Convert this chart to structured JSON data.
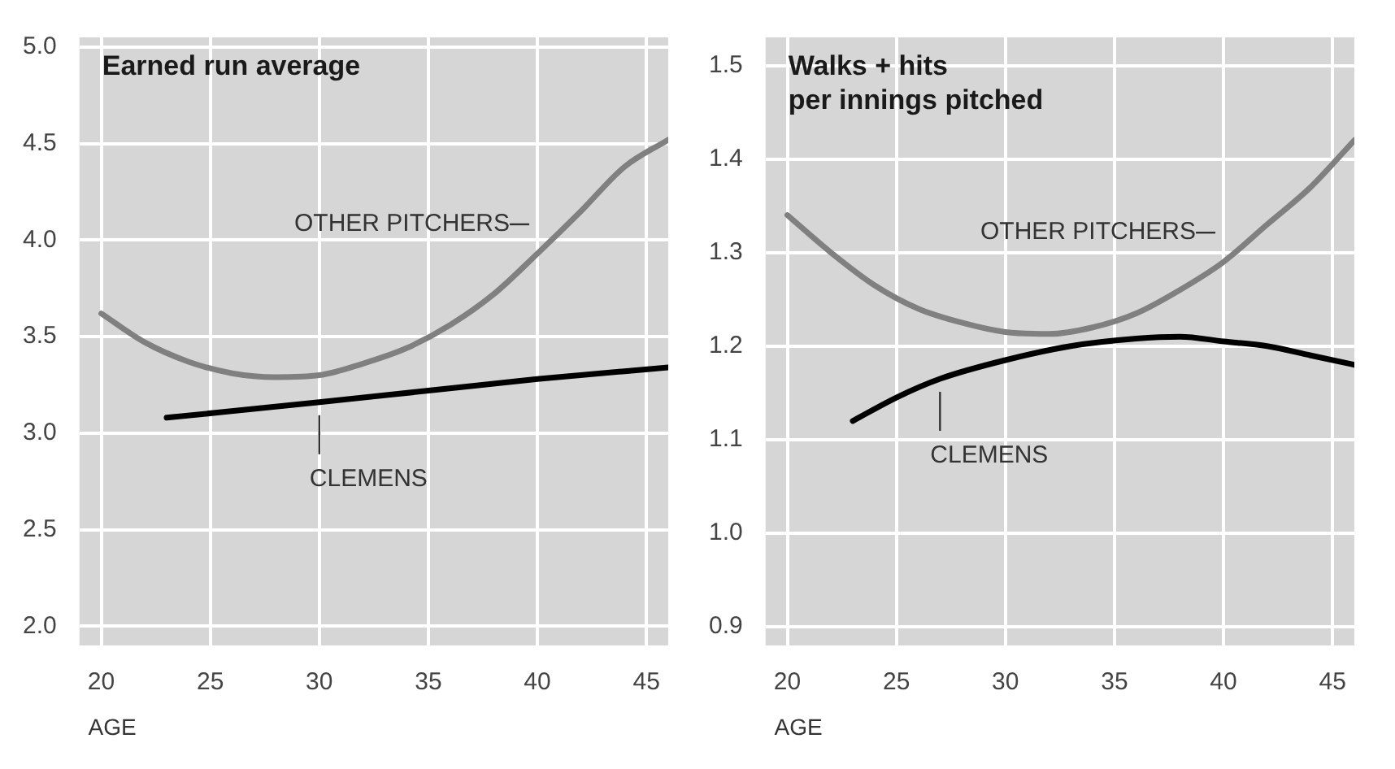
{
  "chart_data": [
    {
      "type": "line",
      "title": "Earned run average",
      "xlabel": "AGE",
      "xlim": [
        19,
        46
      ],
      "xticks": [
        20,
        25,
        30,
        35,
        40,
        45
      ],
      "ylim": [
        1.9,
        5.05
      ],
      "yticks": [
        {
          "value": 2,
          "label": "2.0"
        },
        {
          "value": 2.5,
          "label": "2.5"
        },
        {
          "value": 3,
          "label": "3.0"
        },
        {
          "value": 3.5,
          "label": "3.5"
        },
        {
          "value": 4,
          "label": "4.0"
        },
        {
          "value": 4.5,
          "label": "4.5"
        },
        {
          "value": 5,
          "label": "5.0"
        }
      ],
      "grid": true,
      "legend": false,
      "marker": "none",
      "series": [
        {
          "name": "OTHER PITCHERS",
          "color": "#808080",
          "x": [
            20,
            22,
            24,
            26,
            28,
            30,
            32,
            34,
            36,
            38,
            40,
            42,
            44,
            46
          ],
          "values": [
            3.62,
            3.47,
            3.37,
            3.31,
            3.29,
            3.3,
            3.36,
            3.44,
            3.56,
            3.72,
            3.93,
            4.15,
            4.38,
            4.52
          ]
        },
        {
          "name": "CLEMENS",
          "color": "#000000",
          "x": [
            23,
            30,
            35,
            40,
            46
          ],
          "values": [
            3.08,
            3.16,
            3.22,
            3.28,
            3.34
          ]
        }
      ]
    },
    {
      "type": "line",
      "title": "Walks + hits\nper innings pitched",
      "xlabel": "AGE",
      "xlim": [
        19,
        46
      ],
      "xticks": [
        20,
        25,
        30,
        35,
        40,
        45
      ],
      "ylim": [
        0.88,
        1.53
      ],
      "yticks": [
        {
          "value": 0.9,
          "label": "0.9"
        },
        {
          "value": 1,
          "label": "1.0"
        },
        {
          "value": 1.1,
          "label": "1.1"
        },
        {
          "value": 1.2,
          "label": "1.2"
        },
        {
          "value": 1.3,
          "label": "1.3"
        },
        {
          "value": 1.4,
          "label": "1.4"
        },
        {
          "value": 1.5,
          "label": "1.5"
        }
      ],
      "grid": true,
      "legend": false,
      "marker": "none",
      "series": [
        {
          "name": "OTHER PITCHERS",
          "color": "#808080",
          "x": [
            20,
            22,
            24,
            26,
            28,
            30,
            32,
            34,
            36,
            38,
            40,
            42,
            44,
            46
          ],
          "values": [
            1.34,
            1.3,
            1.265,
            1.24,
            1.225,
            1.215,
            1.213,
            1.22,
            1.235,
            1.26,
            1.29,
            1.33,
            1.37,
            1.42
          ]
        },
        {
          "name": "CLEMENS",
          "color": "#000000",
          "x": [
            23,
            25,
            27,
            30,
            33,
            36,
            38,
            40,
            42,
            44,
            46
          ],
          "values": [
            1.12,
            1.145,
            1.165,
            1.185,
            1.2,
            1.208,
            1.21,
            1.205,
            1.2,
            1.19,
            1.18
          ]
        }
      ]
    }
  ]
}
